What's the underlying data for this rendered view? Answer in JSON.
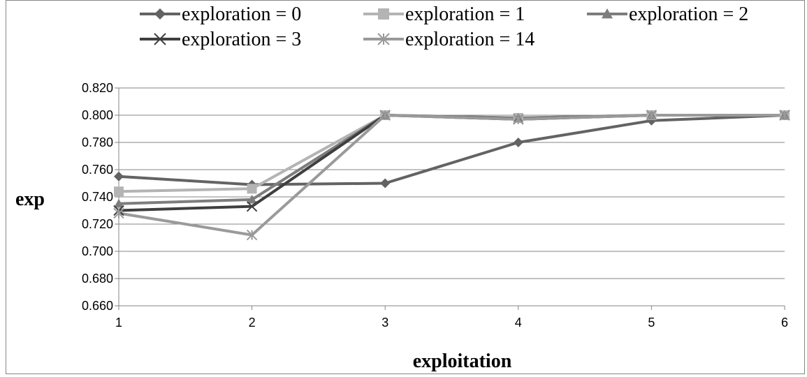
{
  "chart_data": {
    "type": "line",
    "xlabel": "exploitation",
    "ylabel": "exp",
    "x": [
      1,
      2,
      3,
      4,
      5,
      6
    ],
    "ylim": [
      0.66,
      0.82
    ],
    "y_tick_step": 0.02,
    "y_tick_labels": [
      "0.660",
      "0.680",
      "0.700",
      "0.720",
      "0.740",
      "0.760",
      "0.780",
      "0.800",
      "0.820"
    ],
    "x_tick_labels": [
      "1",
      "2",
      "3",
      "4",
      "5",
      "6"
    ],
    "grid": true,
    "legend_position": "top",
    "series": [
      {
        "name": "exploration = 0",
        "marker": "diamond",
        "color": "#636363",
        "values": [
          0.755,
          0.749,
          0.75,
          0.78,
          0.796,
          0.8
        ]
      },
      {
        "name": "exploration = 1",
        "marker": "square",
        "color": "#b4b4b4",
        "values": [
          0.744,
          0.746,
          0.8,
          0.798,
          0.8,
          0.8
        ]
      },
      {
        "name": "exploration = 2",
        "marker": "triangle",
        "color": "#7d7d7d",
        "values": [
          0.735,
          0.738,
          0.8,
          0.798,
          0.8,
          0.8
        ]
      },
      {
        "name": "exploration = 3",
        "marker": "x",
        "color": "#3f3f3f",
        "values": [
          0.73,
          0.733,
          0.8,
          0.797,
          0.8,
          0.8
        ]
      },
      {
        "name": "exploration = 14",
        "marker": "star",
        "color": "#9a9a9a",
        "values": [
          0.728,
          0.712,
          0.8,
          0.797,
          0.8,
          0.8
        ]
      }
    ]
  }
}
